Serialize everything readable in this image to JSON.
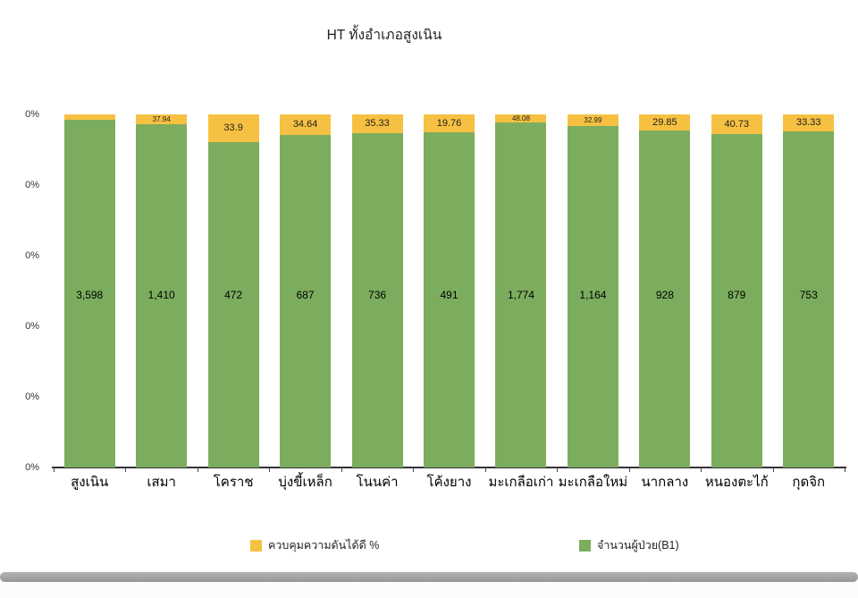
{
  "chart": {
    "title": "HT ทั้งอำเภอสูงเนิน",
    "y_ticks": [
      "0%",
      "0%",
      "0%",
      "0%",
      "0%",
      "0%"
    ],
    "legend": [
      {
        "label": "ควบคุมความดันได้ดี %",
        "color": "#F6C142"
      },
      {
        "label": "จำนวนผู้ป่วย(B1)",
        "color": "#7CAD5E"
      }
    ]
  },
  "chart_data": {
    "type": "bar",
    "stacked": true,
    "title": "HT ทั้งอำเภอสูงเนิน",
    "categories": [
      "สูงเนิน",
      "เสมา",
      "โคราช",
      "บุ่งขี้เหล็ก",
      "โนนค่า",
      "โค้งยาง",
      "มะเกลือเก่า",
      "มะเกลือใหม่",
      "นากลาง",
      "หนองตะไก้",
      "กุดจิก"
    ],
    "series": [
      {
        "name": "จำนวนผู้ป่วย(B1)",
        "color": "#7CAD5E",
        "values": [
          3598,
          1410,
          472,
          687,
          736,
          491,
          1774,
          1164,
          928,
          879,
          753
        ]
      },
      {
        "name": "ควบคุมความดันได้ดี %",
        "color": "#F6C142",
        "values": [
          null,
          37.94,
          33.9,
          34.64,
          35.33,
          19.76,
          48.08,
          32.99,
          29.85,
          40.73,
          33.33
        ]
      }
    ],
    "count_labels": [
      "3,598",
      "1,410",
      "472",
      "687",
      "736",
      "491",
      "1,774",
      "1,164",
      "928",
      "879",
      "753"
    ],
    "percent_labels": [
      "",
      "37.94",
      "33.9",
      "34.64",
      "35.33",
      "19.76",
      "48.08",
      "32.99",
      "29.85",
      "40.73",
      "33.33"
    ],
    "yellow_segment_height_pct": [
      1.5,
      2.8,
      7.8,
      5.8,
      5.3,
      5.1,
      2.3,
      3.3,
      4.6,
      5.6,
      4.8
    ],
    "ylabel_ticks": [
      "0%",
      "0%",
      "0%",
      "0%",
      "0%",
      "0%"
    ],
    "grid": false,
    "legend_position": "bottom"
  }
}
